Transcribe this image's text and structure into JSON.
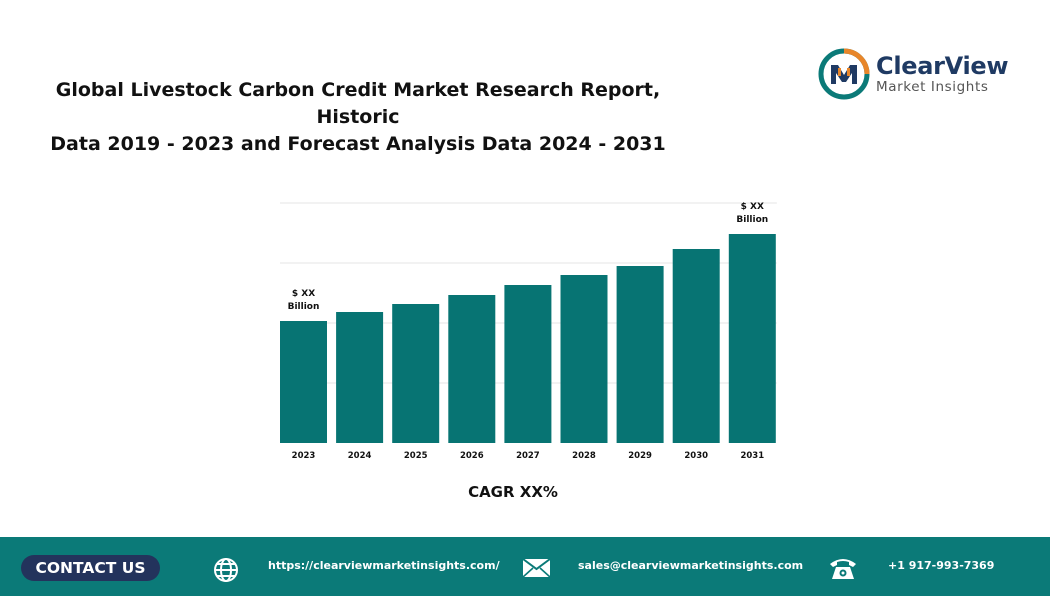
{
  "header": {
    "title_line1": "Global Livestock Carbon Credit Market Research Report, Historic",
    "title_line2": "Data 2019 - 2023 and Forecast Analysis Data 2024 - 2031"
  },
  "logo": {
    "name": "ClearView",
    "subtitle": "Market Insights"
  },
  "chart_data": {
    "type": "bar",
    "categories": [
      "2023",
      "2024",
      "2025",
      "2026",
      "2027",
      "2028",
      "2029",
      "2030",
      "2031"
    ],
    "values": [
      122,
      131,
      139,
      148,
      158,
      168,
      177,
      194,
      209
    ],
    "ylim": [
      0,
      240
    ],
    "grid": true,
    "color": "#077473",
    "annotations": [
      {
        "category": "2023",
        "line1": "$ XX",
        "line2": "Billion"
      },
      {
        "category": "2031",
        "line1": "$ XX",
        "line2": "Billion"
      }
    ]
  },
  "cagr_label": "CAGR XX%",
  "footer": {
    "background": "#0b7a78",
    "contact_label": "CONTACT US",
    "website": "https://clearviewmarketinsights.com/",
    "email": "sales@clearviewmarketinsights.com",
    "phone": "+1 917-993-7369",
    "icons": [
      "globe-icon",
      "mail-icon",
      "phone-icon"
    ]
  }
}
